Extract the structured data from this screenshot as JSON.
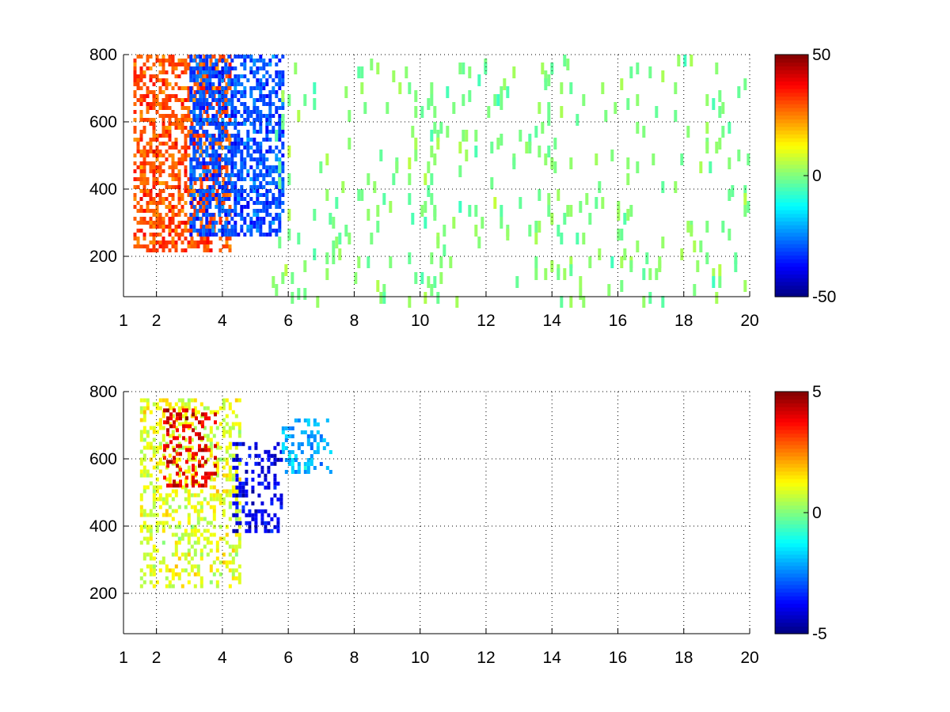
{
  "chart_data": [
    {
      "type": "heatmap",
      "title": "",
      "xlabel": "",
      "ylabel": "",
      "xlim": [
        1,
        20
      ],
      "ylim": [
        80,
        800
      ],
      "x_ticks": [
        1,
        2,
        4,
        6,
        8,
        10,
        12,
        14,
        16,
        18,
        20
      ],
      "y_ticks": [
        200,
        400,
        600,
        800
      ],
      "grid": true,
      "colormap": "jet",
      "colorbar": {
        "limits": [
          -50,
          50
        ],
        "ticks": [
          50,
          0,
          -50
        ]
      },
      "features": [
        {
          "x_range": [
            1.3,
            4.2
          ],
          "y_range": [
            220,
            800
          ],
          "value": 30,
          "description_value": "positive ridge"
        },
        {
          "x_range": [
            3.0,
            5.8
          ],
          "y_range": [
            260,
            800
          ],
          "value": -30,
          "description_value": "negative ridge"
        },
        {
          "x_range": [
            5.5,
            20
          ],
          "y_range": [
            80,
            800
          ],
          "value": 0,
          "description_value": "sparse noise"
        }
      ]
    },
    {
      "type": "heatmap",
      "title": "",
      "xlabel": "",
      "ylabel": "",
      "xlim": [
        1,
        20
      ],
      "ylim": [
        80,
        800
      ],
      "x_ticks": [
        1,
        2,
        4,
        6,
        8,
        10,
        12,
        14,
        16,
        18,
        20
      ],
      "y_ticks": [
        200,
        400,
        600,
        800
      ],
      "grid": true,
      "colormap": "jet",
      "colorbar": {
        "limits": [
          -5,
          5
        ],
        "ticks": [
          5,
          0,
          -5
        ]
      },
      "features": [
        {
          "x_range": [
            1.5,
            4.5
          ],
          "y_range": [
            220,
            780
          ],
          "value": 1
        },
        {
          "x_range": [
            2.2,
            3.8
          ],
          "y_range": [
            520,
            750
          ],
          "value": 4
        },
        {
          "x_range": [
            4.3,
            5.8
          ],
          "y_range": [
            380,
            650
          ],
          "value": -4
        },
        {
          "x_range": [
            5.8,
            7.3
          ],
          "y_range": [
            560,
            720
          ],
          "value": -2
        }
      ]
    }
  ]
}
